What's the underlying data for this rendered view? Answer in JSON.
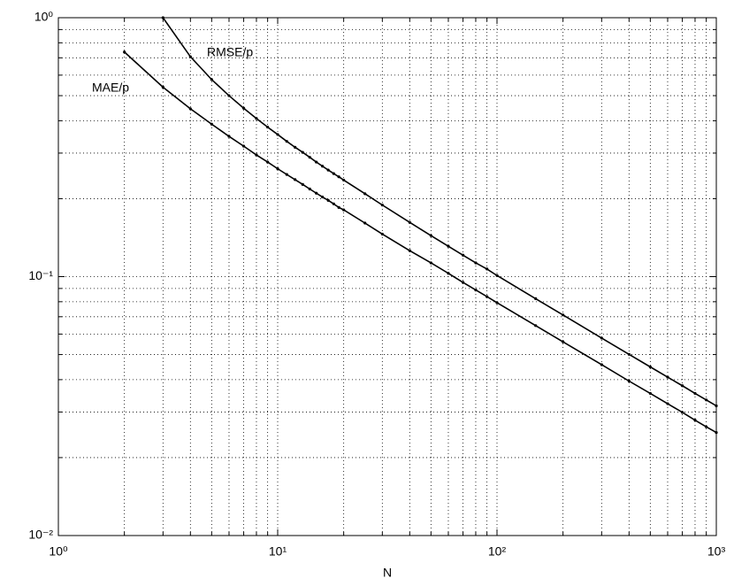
{
  "chart_data": {
    "type": "line",
    "xlabel": "N",
    "xscale": "log",
    "yscale": "log",
    "grid": true,
    "xlim": [
      1,
      1000
    ],
    "ylim": [
      0.01,
      1
    ],
    "xticks": [
      {
        "value": 1,
        "label": "10⁰"
      },
      {
        "value": 10,
        "label": "10¹"
      },
      {
        "value": 100,
        "label": "10²"
      },
      {
        "value": 1000,
        "label": "10³"
      }
    ],
    "yticks": [
      {
        "value": 0.01,
        "label": "10⁻²"
      },
      {
        "value": 0.1,
        "label": "10⁻¹"
      },
      {
        "value": 1,
        "label": "10⁰"
      }
    ],
    "xminorticks": [
      2,
      3,
      4,
      5,
      6,
      7,
      8,
      9,
      20,
      30,
      40,
      50,
      60,
      70,
      80,
      90,
      200,
      300,
      400,
      500,
      600,
      700,
      800,
      900
    ],
    "yminorticks": [
      0.02,
      0.03,
      0.04,
      0.05,
      0.06,
      0.07,
      0.08,
      0.09,
      0.2,
      0.3,
      0.4,
      0.5,
      0.6,
      0.7,
      0.8,
      0.9
    ],
    "x": [
      2,
      3,
      4,
      5,
      6,
      7,
      8,
      9,
      10,
      11,
      12,
      13,
      14,
      15,
      16,
      17,
      18,
      19,
      20,
      25,
      30,
      40,
      50,
      60,
      70,
      80,
      90,
      100,
      150,
      200,
      300,
      400,
      500,
      600,
      700,
      800,
      900,
      1000
    ],
    "series": [
      {
        "name": "RMSE/p",
        "color": "#000000",
        "values": [
          null,
          1,
          0.707,
          0.577,
          0.5,
          0.447,
          0.408,
          0.378,
          0.354,
          0.333,
          0.316,
          0.302,
          0.289,
          0.277,
          0.267,
          0.258,
          0.25,
          0.243,
          0.236,
          0.209,
          0.189,
          0.162,
          0.144,
          0.131,
          0.121,
          0.113,
          0.107,
          0.101,
          0.0822,
          0.0711,
          0.0579,
          0.0501,
          0.0448,
          0.0409,
          0.0379,
          0.0354,
          0.0334,
          0.0317
        ]
      },
      {
        "name": "MAE/p",
        "color": "#000000",
        "values": [
          0.737,
          0.539,
          0.445,
          0.388,
          0.348,
          0.319,
          0.295,
          0.277,
          0.261,
          0.248,
          0.237,
          0.227,
          0.218,
          0.21,
          0.203,
          0.197,
          0.191,
          0.185,
          0.181,
          0.161,
          0.146,
          0.126,
          0.113,
          0.103,
          0.095,
          0.0888,
          0.0837,
          0.0793,
          0.0647,
          0.056,
          0.0457,
          0.0395,
          0.0354,
          0.0323,
          0.0299,
          0.0279,
          0.0263,
          0.025
        ]
      }
    ]
  }
}
